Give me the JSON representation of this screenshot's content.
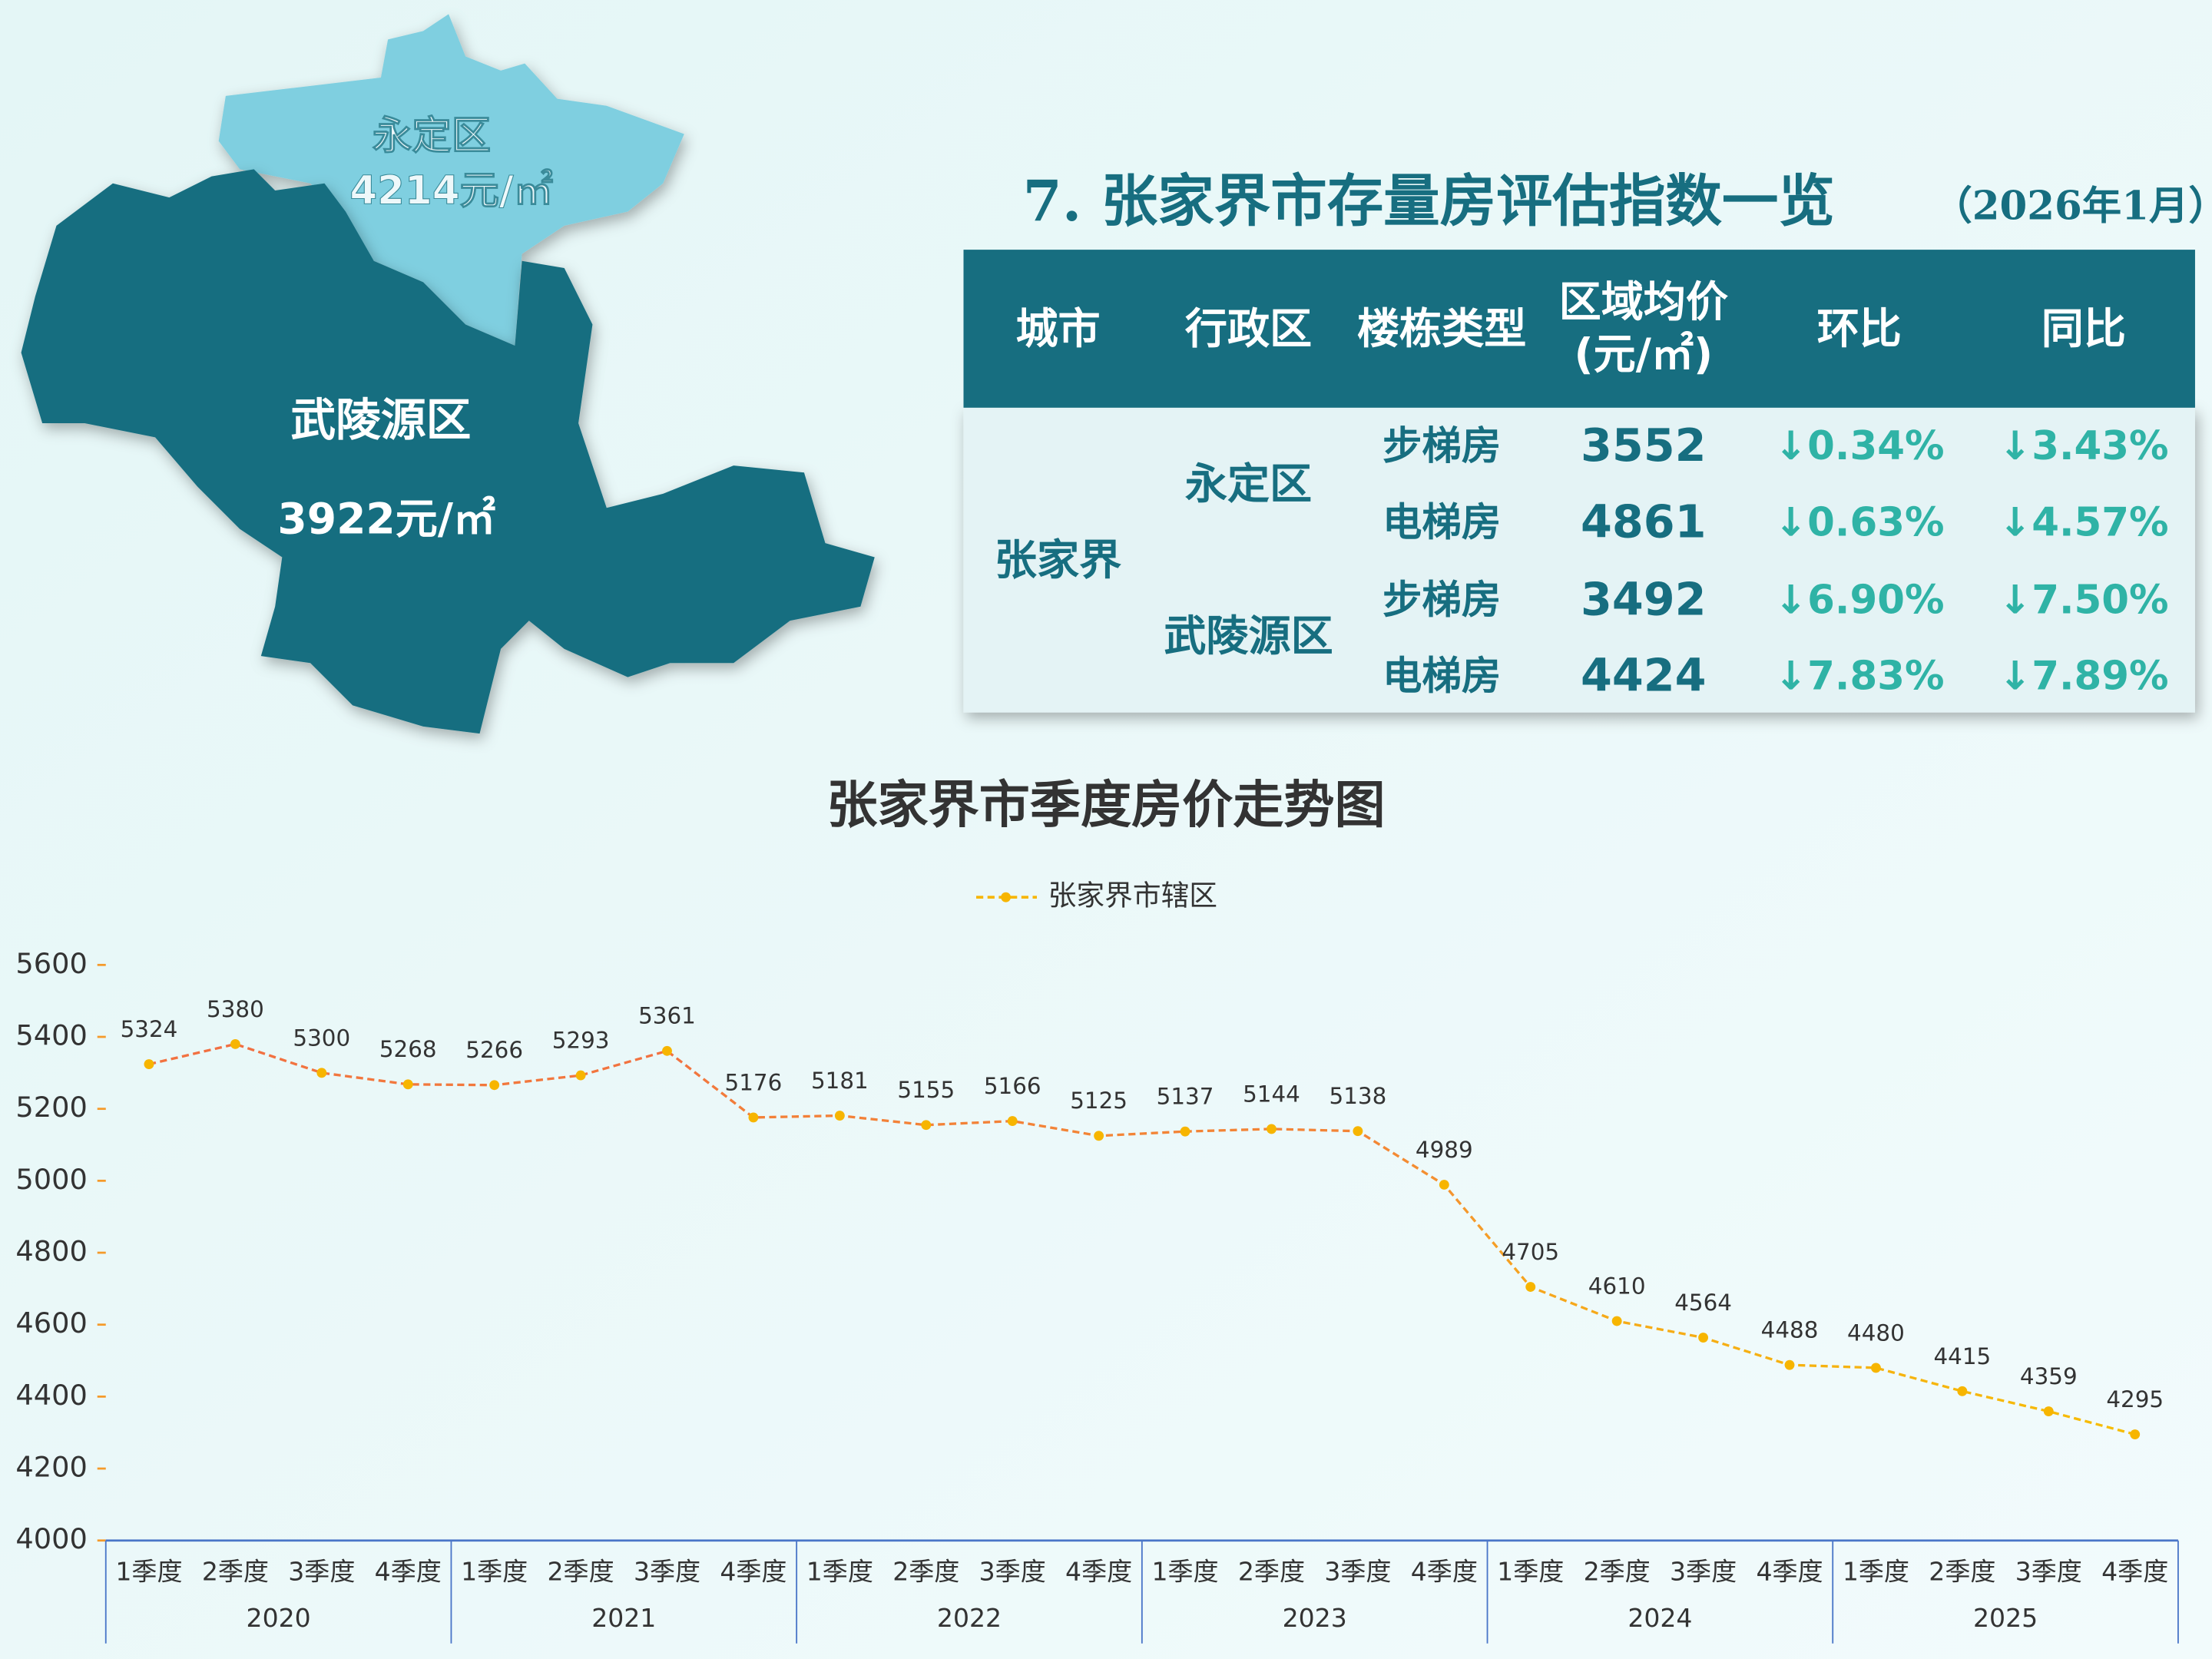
{
  "map": {
    "regions": [
      {
        "name": "永定区",
        "price": "4214元/㎡"
      },
      {
        "name": "武陵源区",
        "price": "3922元/㎡"
      }
    ]
  },
  "table": {
    "title": "7. 张家界市存量房评估指数一览",
    "date": "（2026年1月）",
    "header": [
      "城市",
      "行政区",
      "楼栋类型",
      [
        "区域均价",
        "(元/㎡)"
      ],
      "环比",
      "同比"
    ],
    "city": "张家界",
    "districts": [
      {
        "name": "永定区",
        "rows": [
          [
            "步梯房",
            "3552",
            "↓0.34%",
            "↓3.43%"
          ],
          [
            "电梯房",
            "4861",
            "↓0.63%",
            "↓4.57%"
          ]
        ]
      },
      {
        "name": "武陵源区",
        "rows": [
          [
            "步梯房",
            "3492",
            "↓6.90%",
            "↓7.50%"
          ],
          [
            "电梯房",
            "4424",
            "↓7.83%",
            "↓7.89%"
          ]
        ]
      }
    ]
  },
  "chart_data": {
    "type": "line",
    "title": "张家界市季度房价走势图",
    "categories": [
      "1季度",
      "2季度",
      "3季度",
      "4季度",
      "1季度",
      "2季度",
      "3季度",
      "4季度",
      "1季度",
      "2季度",
      "3季度",
      "4季度",
      "1季度",
      "2季度",
      "3季度",
      "4季度",
      "1季度",
      "2季度",
      "3季度",
      "4季度",
      "1季度",
      "2季度",
      "3季度",
      "4季度"
    ],
    "years": [
      "2020",
      "2021",
      "2022",
      "2023",
      "2024",
      "2025"
    ],
    "series": [
      {
        "name": "张家界市辖区",
        "color": "#f7b500",
        "values": [
          5324,
          5380,
          5300,
          5268,
          5266,
          5293,
          5361,
          5176,
          5181,
          5155,
          5166,
          5125,
          5137,
          5144,
          5138,
          4989,
          4705,
          4610,
          4564,
          4488,
          4480,
          4415,
          4359,
          4295
        ]
      }
    ],
    "ylim": [
      4000,
      5600
    ],
    "yticks": [
      4000,
      4200,
      4400,
      4600,
      4800,
      5000,
      5200,
      5400,
      5600
    ],
    "legend": "top",
    "data_labels": true
  }
}
